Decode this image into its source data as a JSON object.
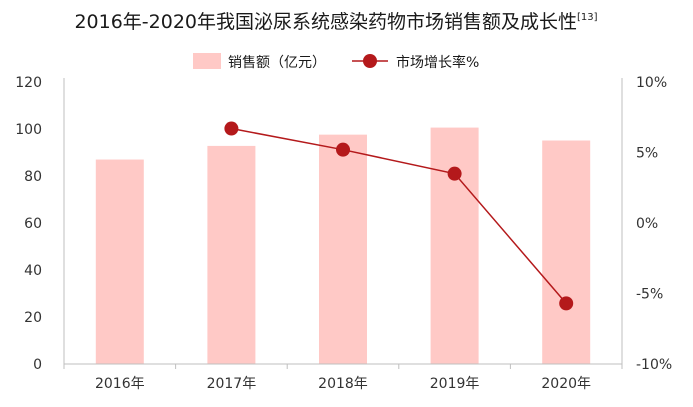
{
  "chart_data": {
    "type": "bar",
    "title": "2016年-2020年我国泌尿系统感染药物市场销售额及成长性",
    "title_ref": "[13]",
    "categories": [
      "2016年",
      "2017年",
      "2018年",
      "2019年",
      "2020年"
    ],
    "series": [
      {
        "name": "销售额（亿元）",
        "type": "bar",
        "axis": "left",
        "color": "#ffc9c6",
        "values": [
          87,
          92.8,
          97.6,
          100.6,
          95.1
        ]
      },
      {
        "name": "市场增长率%",
        "type": "line",
        "axis": "right",
        "color": "#b4191b",
        "values": [
          null,
          6.7,
          5.2,
          3.5,
          -5.7
        ]
      }
    ],
    "y_left": {
      "lim": [
        0,
        120
      ],
      "ticks": [
        0,
        20,
        40,
        60,
        80,
        100,
        120
      ],
      "tick_labels": [
        "0",
        "20",
        "40",
        "60",
        "80",
        "100",
        "120"
      ]
    },
    "y_right": {
      "lim": [
        -10,
        10
      ],
      "ticks": [
        -10,
        -5,
        0,
        5,
        10
      ],
      "tick_labels": [
        "-10%",
        "-5%",
        "0%",
        "5%",
        "10%"
      ]
    },
    "legend_position": "top-center",
    "grid": false
  }
}
